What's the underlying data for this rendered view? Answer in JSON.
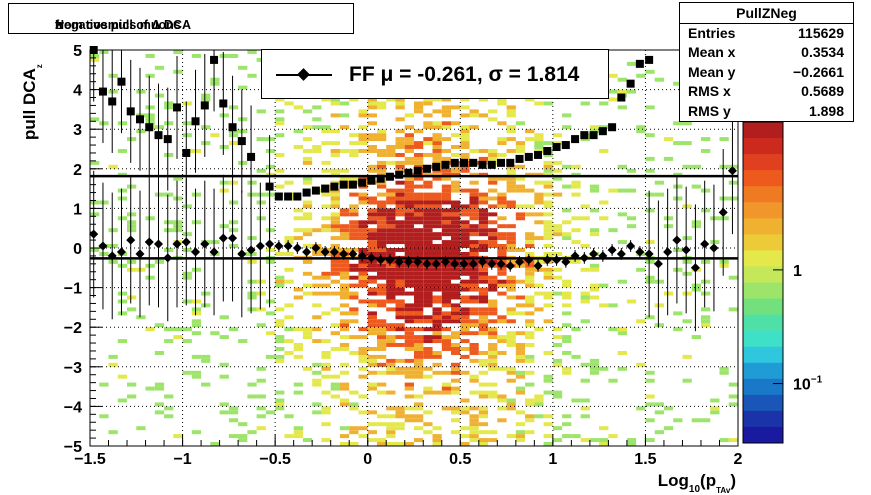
{
  "title": "Negative pull of Δ DCA",
  "title_sub": "z",
  "title_tail": " from cosmics muons",
  "stats": {
    "name": "PullZNeg",
    "rows": [
      {
        "k": "Entries",
        "v": "115629"
      },
      {
        "k": "Mean x",
        "v": "0.3534"
      },
      {
        "k": "Mean y",
        "v": "−0.2661"
      },
      {
        "k": "RMS x",
        "v": "0.5689"
      },
      {
        "k": "RMS y",
        "v": "1.898"
      }
    ]
  },
  "legend": {
    "text": "FF μ = -0.261, σ =   1.814"
  },
  "chart_data": {
    "type": "heatmap",
    "xlabel_main": "Log",
    "xlabel_sub": "10",
    "xlabel_mid": "(p",
    "xlabel_sub2": "TAv",
    "xlabel_end": ")",
    "ylabel_main": "pull DCA",
    "ylabel_sub": "z",
    "xlim": [
      -1.5,
      2
    ],
    "ylim": [
      -5,
      5
    ],
    "x_ticks": [
      "−1.5",
      "−1",
      "−0.5",
      "0",
      "0.5",
      "1",
      "1.5",
      "2"
    ],
    "x_tick_values": [
      -1.5,
      -1,
      -0.5,
      0,
      0.5,
      1,
      1.5,
      2
    ],
    "y_ticks": [
      "−5",
      "−4",
      "−3",
      "−2",
      "−1",
      "0",
      "1",
      "2",
      "3",
      "4",
      "5"
    ],
    "y_tick_values": [
      -5,
      -4,
      -3,
      -2,
      -1,
      0,
      1,
      2,
      3,
      4,
      5
    ],
    "z_ticks": [
      {
        "label": "1",
        "value": 1
      },
      {
        "label": "10",
        "sup": "−1",
        "value": 0.1
      }
    ],
    "zlim": [
      0.03,
      20
    ],
    "grid": true,
    "horizontal_lines": [
      {
        "name": "mean",
        "y": -0.261
      },
      {
        "name": "sigma",
        "y": 1.814
      }
    ],
    "mean_points": {
      "x": [
        -1.48,
        -1.43,
        -1.38,
        -1.33,
        -1.28,
        -1.23,
        -1.18,
        -1.13,
        -1.08,
        -1.03,
        -0.98,
        -0.93,
        -0.88,
        -0.83,
        -0.78,
        -0.73,
        -0.68,
        -0.63,
        -0.58,
        -0.53,
        -0.48,
        -0.43,
        -0.38,
        -0.33,
        -0.28,
        -0.23,
        -0.18,
        -0.13,
        -0.08,
        -0.03,
        0.02,
        0.07,
        0.12,
        0.17,
        0.22,
        0.27,
        0.32,
        0.37,
        0.42,
        0.47,
        0.52,
        0.57,
        0.62,
        0.67,
        0.72,
        0.77,
        0.82,
        0.87,
        0.92,
        0.97,
        1.02,
        1.07,
        1.12,
        1.17,
        1.22,
        1.27,
        1.32,
        1.37,
        1.42,
        1.47,
        1.52,
        1.57,
        1.62,
        1.67,
        1.72,
        1.77,
        1.82,
        1.87,
        1.92,
        1.97
      ],
      "y": [
        0.35,
        0.05,
        -0.2,
        -0.1,
        0.2,
        -0.15,
        0.15,
        0.1,
        -0.25,
        0.1,
        0.15,
        -0.1,
        0.1,
        -0.1,
        0.25,
        0.25,
        -0.15,
        -0.05,
        0.05,
        0.1,
        0.05,
        0.05,
        0.0,
        -0.1,
        0.0,
        -0.1,
        -0.1,
        -0.15,
        -0.15,
        -0.2,
        -0.25,
        -0.3,
        -0.3,
        -0.35,
        -0.35,
        -0.35,
        -0.4,
        -0.4,
        -0.35,
        -0.4,
        -0.4,
        -0.4,
        -0.35,
        -0.4,
        -0.4,
        -0.45,
        -0.35,
        -0.3,
        -0.45,
        -0.3,
        -0.3,
        -0.35,
        -0.2,
        -0.25,
        -0.15,
        -0.2,
        -0.05,
        -0.15,
        0.05,
        -0.1,
        -0.15,
        -0.4,
        -0.1,
        0.2,
        -0.05,
        -0.5,
        0.1,
        0.0,
        0.9,
        1.95
      ]
    },
    "sigma_points": {
      "x": [
        -1.48,
        -1.43,
        -1.38,
        -1.33,
        -1.28,
        -1.23,
        -1.18,
        -1.13,
        -1.08,
        -1.03,
        -0.98,
        -0.93,
        -0.88,
        -0.83,
        -0.78,
        -0.73,
        -0.68,
        -0.63,
        -0.53,
        -0.48,
        -0.43,
        -0.38,
        -0.33,
        -0.28,
        -0.23,
        -0.18,
        -0.13,
        -0.08,
        -0.03,
        0.02,
        0.07,
        0.12,
        0.17,
        0.22,
        0.27,
        0.32,
        0.37,
        0.42,
        0.47,
        0.52,
        0.57,
        0.62,
        0.67,
        0.72,
        0.77,
        0.82,
        0.87,
        0.92,
        0.97,
        1.02,
        1.07,
        1.12,
        1.17,
        1.22,
        1.27,
        1.32,
        1.37,
        1.42,
        1.47,
        1.52
      ],
      "y": [
        5.0,
        3.95,
        3.7,
        4.2,
        3.45,
        3.25,
        3.05,
        2.85,
        2.75,
        3.55,
        2.4,
        3.2,
        3.6,
        4.75,
        3.65,
        3.05,
        2.7,
        2.3,
        1.55,
        1.3,
        1.3,
        1.3,
        1.4,
        1.45,
        1.5,
        1.55,
        1.6,
        1.6,
        1.65,
        1.7,
        1.75,
        1.8,
        1.85,
        1.9,
        1.95,
        2.0,
        2.05,
        2.1,
        2.15,
        2.15,
        2.15,
        2.1,
        2.1,
        2.15,
        2.15,
        2.25,
        2.3,
        2.35,
        2.45,
        2.55,
        2.6,
        2.75,
        2.85,
        2.85,
        2.95,
        3.05,
        3.8,
        4.15,
        4.65,
        4.75
      ]
    }
  }
}
